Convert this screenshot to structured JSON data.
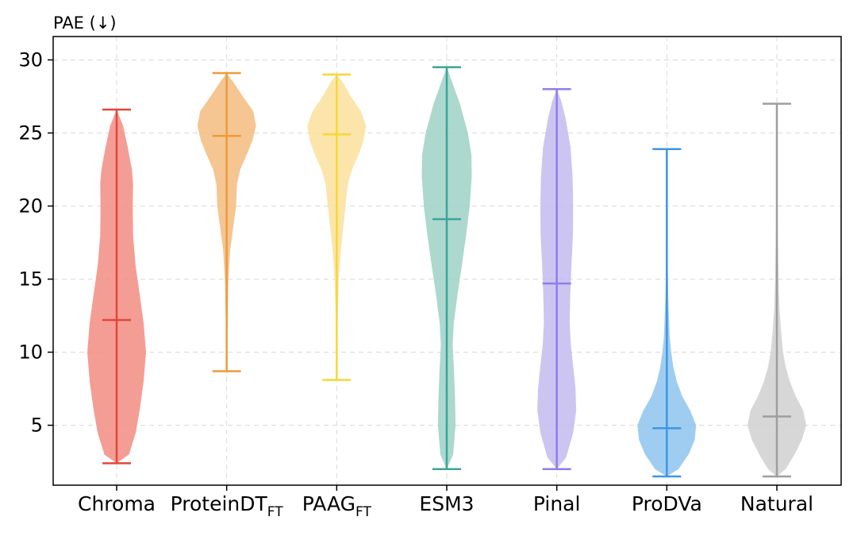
{
  "chart_data": {
    "type": "violin",
    "ylabel": "PAE (↓)",
    "ylim": [
      0.9,
      31.6
    ],
    "yticks": [
      5,
      10,
      15,
      20,
      25,
      30
    ],
    "grid": true,
    "categories": [
      {
        "name": "Chroma",
        "sub": ""
      },
      {
        "name": "ProteinDT",
        "sub": "FT"
      },
      {
        "name": "PAAG",
        "sub": "FT"
      },
      {
        "name": "ESM3",
        "sub": ""
      },
      {
        "name": "Pinal",
        "sub": ""
      },
      {
        "name": "ProDVa",
        "sub": ""
      },
      {
        "name": "Natural",
        "sub": ""
      }
    ],
    "series": [
      {
        "name": "Chroma",
        "min": 2.4,
        "median": 12.2,
        "max": 26.6,
        "fill": "#f28c82",
        "line": "#e2463a",
        "density": [
          [
            2.4,
            0.0
          ],
          [
            3.0,
            0.42
          ],
          [
            4.5,
            0.65
          ],
          [
            6.0,
            0.78
          ],
          [
            8.0,
            0.92
          ],
          [
            10.0,
            1.0
          ],
          [
            12.0,
            0.92
          ],
          [
            14.0,
            0.78
          ],
          [
            16.0,
            0.64
          ],
          [
            18.0,
            0.56
          ],
          [
            20.0,
            0.55
          ],
          [
            21.5,
            0.56
          ],
          [
            22.5,
            0.52
          ],
          [
            24.0,
            0.38
          ],
          [
            25.5,
            0.22
          ],
          [
            26.6,
            0.0
          ]
        ]
      },
      {
        "name": "ProteinDT",
        "min": 8.7,
        "median": 24.8,
        "max": 29.1,
        "fill": "#f3bb7f",
        "line": "#ee9b3a",
        "density": [
          [
            8.7,
            0.0
          ],
          [
            12.0,
            0.03
          ],
          [
            15.0,
            0.06
          ],
          [
            17.0,
            0.12
          ],
          [
            18.5,
            0.22
          ],
          [
            20.0,
            0.32
          ],
          [
            21.5,
            0.35
          ],
          [
            22.5,
            0.46
          ],
          [
            23.5,
            0.68
          ],
          [
            24.5,
            0.88
          ],
          [
            25.5,
            1.0
          ],
          [
            26.5,
            0.9
          ],
          [
            27.5,
            0.55
          ],
          [
            28.5,
            0.22
          ],
          [
            29.1,
            0.0
          ]
        ]
      },
      {
        "name": "PAAG",
        "min": 8.1,
        "median": 24.9,
        "max": 29.0,
        "fill": "#fbe09c",
        "line": "#f7d735",
        "density": [
          [
            8.1,
            0.0
          ],
          [
            12.0,
            0.03
          ],
          [
            15.0,
            0.07
          ],
          [
            17.0,
            0.14
          ],
          [
            18.5,
            0.22
          ],
          [
            20.0,
            0.3
          ],
          [
            21.5,
            0.38
          ],
          [
            22.5,
            0.52
          ],
          [
            23.5,
            0.74
          ],
          [
            24.5,
            0.92
          ],
          [
            25.5,
            1.0
          ],
          [
            26.5,
            0.82
          ],
          [
            27.5,
            0.48
          ],
          [
            28.5,
            0.2
          ],
          [
            29.0,
            0.0
          ]
        ]
      },
      {
        "name": "ESM3",
        "min": 2.0,
        "median": 19.1,
        "max": 29.5,
        "fill": "#9dd1c6",
        "line": "#3aa596",
        "density": [
          [
            2.0,
            0.0
          ],
          [
            3.0,
            0.22
          ],
          [
            5.0,
            0.3
          ],
          [
            7.0,
            0.28
          ],
          [
            9.0,
            0.24
          ],
          [
            10.5,
            0.2
          ],
          [
            12.0,
            0.24
          ],
          [
            14.0,
            0.37
          ],
          [
            16.0,
            0.52
          ],
          [
            18.0,
            0.66
          ],
          [
            20.0,
            0.78
          ],
          [
            22.0,
            0.85
          ],
          [
            23.5,
            0.84
          ],
          [
            25.0,
            0.72
          ],
          [
            27.0,
            0.45
          ],
          [
            28.5,
            0.18
          ],
          [
            29.5,
            0.0
          ]
        ]
      },
      {
        "name": "Pinal",
        "min": 2.0,
        "median": 14.7,
        "max": 28.0,
        "fill": "#c3bbf0",
        "line": "#8c7ee8",
        "density": [
          [
            2.0,
            0.0
          ],
          [
            2.8,
            0.32
          ],
          [
            4.5,
            0.56
          ],
          [
            6.0,
            0.66
          ],
          [
            7.5,
            0.64
          ],
          [
            9.0,
            0.56
          ],
          [
            10.5,
            0.48
          ],
          [
            12.0,
            0.44
          ],
          [
            14.0,
            0.46
          ],
          [
            16.0,
            0.5
          ],
          [
            18.0,
            0.55
          ],
          [
            20.0,
            0.56
          ],
          [
            22.0,
            0.54
          ],
          [
            24.0,
            0.47
          ],
          [
            26.0,
            0.3
          ],
          [
            27.2,
            0.15
          ],
          [
            28.0,
            0.0
          ]
        ]
      },
      {
        "name": "ProDVa",
        "min": 1.5,
        "median": 4.8,
        "max": 23.9,
        "fill": "#8ec4ef",
        "line": "#3d96e3",
        "density": [
          [
            1.5,
            0.0
          ],
          [
            2.0,
            0.4
          ],
          [
            3.0,
            0.74
          ],
          [
            4.0,
            0.95
          ],
          [
            5.0,
            1.0
          ],
          [
            6.0,
            0.8
          ],
          [
            7.0,
            0.52
          ],
          [
            8.0,
            0.34
          ],
          [
            9.0,
            0.22
          ],
          [
            10.0,
            0.15
          ],
          [
            11.0,
            0.1
          ],
          [
            12.5,
            0.07
          ],
          [
            14.0,
            0.045
          ],
          [
            16.0,
            0.03
          ],
          [
            19.0,
            0.015
          ],
          [
            22.0,
            0.008
          ],
          [
            23.9,
            0.0
          ]
        ]
      },
      {
        "name": "Natural",
        "min": 1.5,
        "median": 5.6,
        "max": 27.0,
        "fill": "#d0d0d0",
        "line": "#9e9e9e",
        "density": [
          [
            1.5,
            0.0
          ],
          [
            2.0,
            0.3
          ],
          [
            3.0,
            0.6
          ],
          [
            4.0,
            0.85
          ],
          [
            5.0,
            1.0
          ],
          [
            6.0,
            0.9
          ],
          [
            7.0,
            0.64
          ],
          [
            8.0,
            0.44
          ],
          [
            9.0,
            0.3
          ],
          [
            10.0,
            0.21
          ],
          [
            11.5,
            0.14
          ],
          [
            13.0,
            0.09
          ],
          [
            15.0,
            0.06
          ],
          [
            18.0,
            0.035
          ],
          [
            21.0,
            0.02
          ],
          [
            24.0,
            0.01
          ],
          [
            27.0,
            0.0
          ]
        ]
      }
    ]
  }
}
